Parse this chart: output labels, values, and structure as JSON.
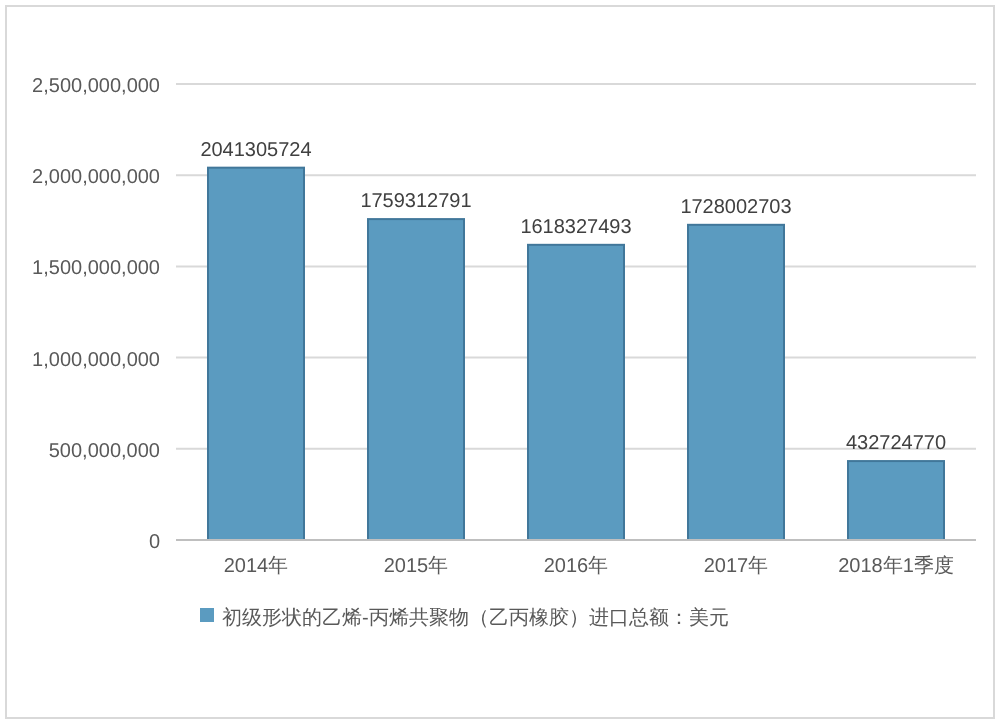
{
  "chart_data": {
    "type": "bar",
    "categories": [
      "2014年",
      "2015年",
      "2016年",
      "2017年",
      "2018年1季度"
    ],
    "series": [
      {
        "name": "初级形状的乙烯-丙烯共聚物（乙丙橡胶）进口总额：美元",
        "color": "#5b9bc0",
        "values": [
          2041305724,
          1759312791,
          1618327493,
          1728002703,
          432724770
        ]
      }
    ],
    "ylim": [
      0,
      2500000000
    ],
    "yticks": [
      {
        "value": 0,
        "label": "0"
      },
      {
        "value": 500000000,
        "label": "500,000,000"
      },
      {
        "value": 1000000000,
        "label": "1,000,000,000"
      },
      {
        "value": 1500000000,
        "label": "1,500,000,000"
      },
      {
        "value": 2000000000,
        "label": "2,000,000,000"
      },
      {
        "value": 2500000000,
        "label": "2,500,000,000"
      }
    ],
    "grid": "y",
    "legend": "bottom",
    "data_labels": true
  }
}
